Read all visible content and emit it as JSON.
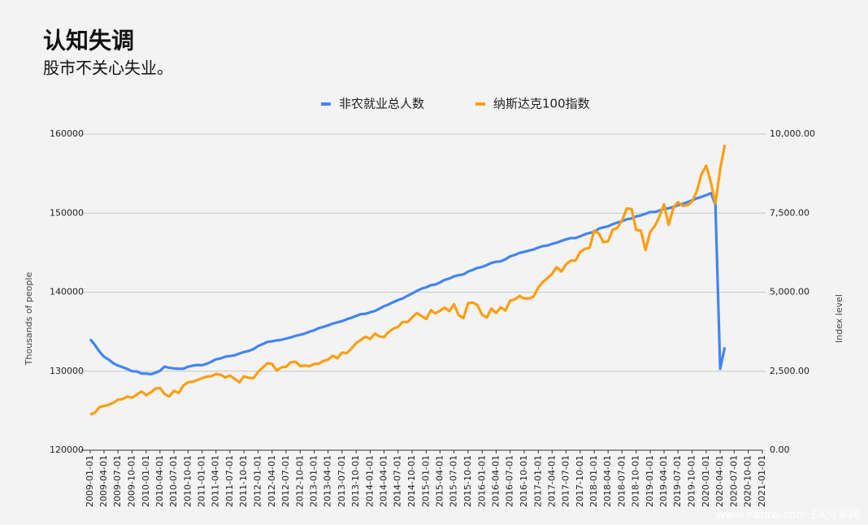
{
  "chart_data": {
    "type": "line",
    "title": "认知失调",
    "subtitle": "股市不关心失业。",
    "y_label": "Thousands of people",
    "y2_label": "Index level",
    "watermark": "www.eafxw.com   EA分享网",
    "x": [
      "2009-01-01",
      "2009-02-01",
      "2009-03-01",
      "2009-04-01",
      "2009-05-01",
      "2009-06-01",
      "2009-07-01",
      "2009-08-01",
      "2009-09-01",
      "2009-10-01",
      "2009-11-01",
      "2009-12-01",
      "2010-01-01",
      "2010-02-01",
      "2010-03-01",
      "2010-04-01",
      "2010-05-01",
      "2010-06-01",
      "2010-07-01",
      "2010-08-01",
      "2010-09-01",
      "2010-10-01",
      "2010-11-01",
      "2010-12-01",
      "2011-01-01",
      "2011-02-01",
      "2011-03-01",
      "2011-04-01",
      "2011-05-01",
      "2011-06-01",
      "2011-07-01",
      "2011-08-01",
      "2011-09-01",
      "2011-10-01",
      "2011-11-01",
      "2011-12-01",
      "2012-01-01",
      "2012-02-01",
      "2012-03-01",
      "2012-04-01",
      "2012-05-01",
      "2012-06-01",
      "2012-07-01",
      "2012-08-01",
      "2012-09-01",
      "2012-10-01",
      "2012-11-01",
      "2012-12-01",
      "2013-01-01",
      "2013-02-01",
      "2013-03-01",
      "2013-04-01",
      "2013-05-01",
      "2013-06-01",
      "2013-07-01",
      "2013-08-01",
      "2013-09-01",
      "2013-10-01",
      "2013-11-01",
      "2013-12-01",
      "2014-01-01",
      "2014-02-01",
      "2014-03-01",
      "2014-04-01",
      "2014-05-01",
      "2014-06-01",
      "2014-07-01",
      "2014-08-01",
      "2014-09-01",
      "2014-10-01",
      "2014-11-01",
      "2014-12-01",
      "2015-01-01",
      "2015-02-01",
      "2015-03-01",
      "2015-04-01",
      "2015-05-01",
      "2015-06-01",
      "2015-07-01",
      "2015-08-01",
      "2015-09-01",
      "2015-10-01",
      "2015-11-01",
      "2015-12-01",
      "2016-01-01",
      "2016-02-01",
      "2016-03-01",
      "2016-04-01",
      "2016-05-01",
      "2016-06-01",
      "2016-07-01",
      "2016-08-01",
      "2016-09-01",
      "2016-10-01",
      "2016-11-01",
      "2016-12-01",
      "2017-01-01",
      "2017-02-01",
      "2017-03-01",
      "2017-04-01",
      "2017-05-01",
      "2017-06-01",
      "2017-07-01",
      "2017-08-01",
      "2017-09-01",
      "2017-10-01",
      "2017-11-01",
      "2017-12-01",
      "2018-01-01",
      "2018-02-01",
      "2018-03-01",
      "2018-04-01",
      "2018-05-01",
      "2018-06-01",
      "2018-07-01",
      "2018-08-01",
      "2018-09-01",
      "2018-10-01",
      "2018-11-01",
      "2018-12-01",
      "2019-01-01",
      "2019-02-01",
      "2019-03-01",
      "2019-04-01",
      "2019-05-01",
      "2019-06-01",
      "2019-07-01",
      "2019-08-01",
      "2019-09-01",
      "2019-10-01",
      "2019-11-01",
      "2019-12-01",
      "2020-01-01",
      "2020-02-01",
      "2020-03-01",
      "2020-04-01",
      "2020-05-01"
    ],
    "series": [
      {
        "name": "非农就业总人数",
        "color": "#4285f4",
        "values": [
          134055,
          133312,
          132515,
          131820,
          131473,
          131006,
          130718,
          130501,
          130266,
          129992,
          129977,
          129698,
          129705,
          129621,
          129797,
          130049,
          130579,
          130434,
          130350,
          130310,
          130306,
          130569,
          130705,
          130788,
          130758,
          130954,
          131190,
          131512,
          131613,
          131843,
          131916,
          132015,
          132236,
          132428,
          132563,
          132792,
          133180,
          133442,
          133705,
          133787,
          133897,
          133971,
          134127,
          134278,
          134467,
          134608,
          134764,
          134997,
          135183,
          135462,
          135601,
          135802,
          136014,
          136184,
          136334,
          136574,
          136764,
          136989,
          137219,
          137266,
          137456,
          137631,
          137896,
          138226,
          138448,
          138740,
          138996,
          139200,
          139548,
          139827,
          140164,
          140435,
          140618,
          140888,
          140962,
          141228,
          141553,
          141720,
          142001,
          142151,
          142253,
          142593,
          142824,
          143070,
          143196,
          143432,
          143699,
          143846,
          143888,
          144174,
          144531,
          144712,
          144972,
          145095,
          145262,
          145394,
          145644,
          145836,
          145903,
          146108,
          146263,
          146494,
          146678,
          146841,
          146855,
          147064,
          147317,
          147493,
          147613,
          148037,
          148199,
          148331,
          148602,
          148807,
          148962,
          149233,
          149320,
          149578,
          149713,
          149911,
          150150,
          150151,
          150312,
          150550,
          150612,
          150790,
          150975,
          151182,
          151387,
          151624,
          151871,
          152060,
          152273,
          152523,
          151090,
          130303,
          133028
        ]
      },
      {
        "name": "纳斯达克100指数",
        "color": "#ff9e0f",
        "axis": "y2",
        "values": [
          1131,
          1190,
          1360,
          1400,
          1440,
          1500,
          1600,
          1620,
          1700,
          1660,
          1760,
          1860,
          1740,
          1830,
          1950,
          1970,
          1780,
          1700,
          1880,
          1810,
          2050,
          2150,
          2170,
          2220,
          2280,
          2330,
          2340,
          2410,
          2390,
          2300,
          2360,
          2260,
          2150,
          2340,
          2290,
          2280,
          2480,
          2620,
          2750,
          2730,
          2520,
          2620,
          2640,
          2780,
          2800,
          2660,
          2680,
          2660,
          2730,
          2740,
          2820,
          2870,
          2990,
          2910,
          3090,
          3070,
          3220,
          3390,
          3490,
          3590,
          3520,
          3690,
          3600,
          3580,
          3740,
          3850,
          3900,
          4060,
          4050,
          4200,
          4340,
          4240,
          4150,
          4430,
          4330,
          4410,
          4510,
          4400,
          4620,
          4270,
          4180,
          4650,
          4670,
          4590,
          4280,
          4200,
          4480,
          4340,
          4520,
          4420,
          4730,
          4770,
          4880,
          4800,
          4800,
          4860,
          5150,
          5330,
          5440,
          5580,
          5790,
          5650,
          5880,
          6000,
          6000,
          6270,
          6370,
          6400,
          6950,
          6850,
          6580,
          6610,
          6970,
          7040,
          7270,
          7650,
          7630,
          6970,
          6950,
          6330,
          6910,
          7100,
          7380,
          7780,
          7130,
          7670,
          7850,
          7730,
          7750,
          7870,
          8200,
          8730,
          9000,
          8460,
          7810,
          8890,
          9660
        ]
      }
    ],
    "xlim": [
      "2009-01-01",
      "2021-01-01"
    ],
    "xticks": [
      "2009-01-01",
      "2009-04-01",
      "2009-07-01",
      "2009-10-01",
      "2010-01-01",
      "2010-04-01",
      "2010-07-01",
      "2010-10-01",
      "2011-01-01",
      "2011-04-01",
      "2011-07-01",
      "2011-10-01",
      "2012-01-01",
      "2012-04-01",
      "2012-07-01",
      "2012-10-01",
      "2013-01-01",
      "2013-04-01",
      "2013-07-01",
      "2013-10-01",
      "2014-01-01",
      "2014-04-01",
      "2014-07-01",
      "2014-10-01",
      "2015-01-01",
      "2015-04-01",
      "2015-07-01",
      "2015-10-01",
      "2016-01-01",
      "2016-04-01",
      "2016-07-01",
      "2016-10-01",
      "2017-01-01",
      "2017-04-01",
      "2017-07-01",
      "2017-10-01",
      "2018-01-01",
      "2018-04-01",
      "2018-07-01",
      "2018-10-01",
      "2019-01-01",
      "2019-04-01",
      "2019-07-01",
      "2019-10-01",
      "2020-01-01",
      "2020-04-01",
      "2020-07-01",
      "2020-10-01",
      "2021-01-01"
    ],
    "ylim": [
      120000,
      160000
    ],
    "yticks": [
      120000,
      130000,
      140000,
      150000,
      160000
    ],
    "y2lim": [
      0,
      10000
    ],
    "y2ticks": [
      {
        "value": 0,
        "label": "0.00"
      },
      {
        "value": 2500,
        "label": "2,500.00"
      },
      {
        "value": 5000,
        "label": "5,000.00"
      },
      {
        "value": 7500,
        "label": "7,500.00"
      },
      {
        "value": 10000,
        "label": "10,000.00"
      }
    ],
    "grid": true,
    "legend": "top"
  }
}
